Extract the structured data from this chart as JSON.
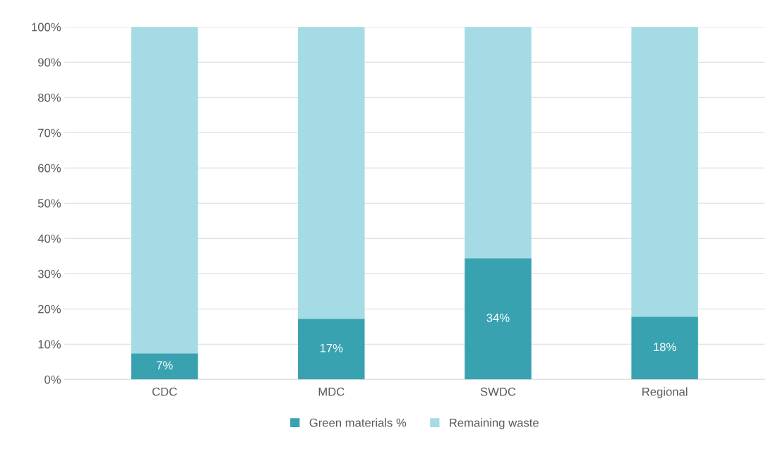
{
  "chart_data": {
    "type": "bar",
    "stacked": true,
    "categories": [
      "CDC",
      "MDC",
      "SWDC",
      "Regional"
    ],
    "series": [
      {
        "name": "Green materials %",
        "color": "#38a2b1",
        "values": [
          7.4,
          17.2,
          34.4,
          17.8
        ],
        "value_labels": [
          "7%",
          "17%",
          "34%",
          "18%"
        ]
      },
      {
        "name": "Remaining waste",
        "color": "#a5dbe4",
        "values": [
          92.6,
          82.8,
          65.6,
          82.2
        ]
      }
    ],
    "ylim": [
      0,
      100
    ],
    "yticks": [
      {
        "value": 0,
        "label": "0%"
      },
      {
        "value": 10,
        "label": "10%"
      },
      {
        "value": 20,
        "label": "20%"
      },
      {
        "value": 30,
        "label": "30%"
      },
      {
        "value": 40,
        "label": "40%"
      },
      {
        "value": 50,
        "label": "50%"
      },
      {
        "value": 60,
        "label": "60%"
      },
      {
        "value": 70,
        "label": "70%"
      },
      {
        "value": 80,
        "label": "80%"
      },
      {
        "value": 90,
        "label": "90%"
      },
      {
        "value": 100,
        "label": "100%"
      }
    ],
    "grid": "y",
    "legend": "bottom"
  }
}
